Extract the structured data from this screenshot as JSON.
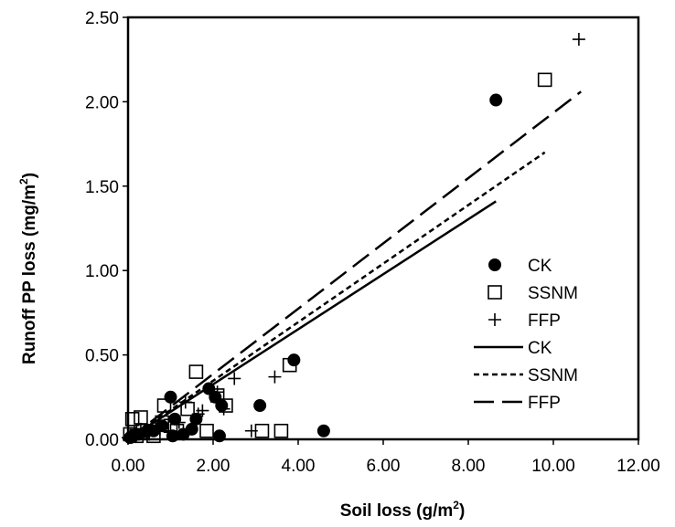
{
  "chart_data": {
    "type": "scatter",
    "xlabel": "Soil loss (g/m",
    "xlabel_sup": "2",
    "xlabel_end": ")",
    "ylabel": "Runoff PP loss (mg/m",
    "ylabel_sup": "2",
    "ylabel_end": ")",
    "xlim": [
      0,
      12
    ],
    "ylim": [
      0,
      2.5
    ],
    "x_ticks": [
      "0.00",
      "2.00",
      "4.00",
      "6.00",
      "8.00",
      "10.00",
      "12.00"
    ],
    "y_ticks": [
      "0.00",
      "0.50",
      "1.00",
      "1.50",
      "2.00",
      "2.50"
    ],
    "grid": false,
    "legend_position": "right",
    "scatter_series": [
      {
        "name": "CK",
        "marker": "filled-circle",
        "points": [
          [
            0.05,
            0.01
          ],
          [
            0.12,
            0.02
          ],
          [
            0.25,
            0.03
          ],
          [
            0.45,
            0.05
          ],
          [
            0.6,
            0.05
          ],
          [
            0.8,
            0.08
          ],
          [
            1.0,
            0.25
          ],
          [
            1.05,
            0.02
          ],
          [
            1.1,
            0.12
          ],
          [
            1.3,
            0.03
          ],
          [
            1.5,
            0.06
          ],
          [
            1.6,
            0.12
          ],
          [
            1.9,
            0.3
          ],
          [
            2.05,
            0.25
          ],
          [
            2.15,
            0.02
          ],
          [
            2.2,
            0.2
          ],
          [
            3.1,
            0.2
          ],
          [
            3.9,
            0.47
          ],
          [
            4.6,
            0.05
          ],
          [
            8.65,
            2.01
          ]
        ]
      },
      {
        "name": "SSNM",
        "marker": "open-square",
        "points": [
          [
            0.05,
            0.03
          ],
          [
            0.1,
            0.12
          ],
          [
            0.2,
            0.02
          ],
          [
            0.3,
            0.13
          ],
          [
            0.35,
            0.05
          ],
          [
            0.6,
            0.02
          ],
          [
            0.8,
            0.1
          ],
          [
            0.85,
            0.2
          ],
          [
            1.0,
            0.08
          ],
          [
            1.15,
            0.05
          ],
          [
            1.4,
            0.18
          ],
          [
            1.6,
            0.4
          ],
          [
            1.85,
            0.05
          ],
          [
            2.1,
            0.26
          ],
          [
            2.3,
            0.2
          ],
          [
            3.15,
            0.05
          ],
          [
            3.6,
            0.05
          ],
          [
            3.8,
            0.44
          ],
          [
            9.8,
            2.13
          ]
        ]
      },
      {
        "name": "FFP",
        "marker": "plus",
        "points": [
          [
            0.0,
            0.01
          ],
          [
            0.15,
            0.04
          ],
          [
            0.3,
            0.06
          ],
          [
            0.5,
            0.03
          ],
          [
            0.75,
            0.06
          ],
          [
            0.95,
            0.05
          ],
          [
            1.2,
            0.1
          ],
          [
            1.35,
            0.22
          ],
          [
            1.65,
            0.15
          ],
          [
            1.75,
            0.17
          ],
          [
            2.1,
            0.28
          ],
          [
            2.25,
            0.18
          ],
          [
            2.5,
            0.36
          ],
          [
            2.9,
            0.05
          ],
          [
            3.45,
            0.37
          ],
          [
            10.6,
            2.37
          ]
        ]
      }
    ],
    "fit_lines": [
      {
        "name": "CK",
        "style": "solid",
        "x_start": 0.0,
        "y_start": 0.0,
        "x_end": 8.65,
        "y_end": 1.41
      },
      {
        "name": "SSNM",
        "style": "short-dash",
        "x_start": 0.0,
        "y_start": 0.0,
        "x_end": 9.8,
        "y_end": 1.7
      },
      {
        "name": "FFP",
        "style": "long-dash",
        "x_start": 0.0,
        "y_start": 0.0,
        "x_end": 10.65,
        "y_end": 2.06
      }
    ],
    "colors": {
      "marks": "#000000",
      "background": "#ffffff"
    }
  }
}
